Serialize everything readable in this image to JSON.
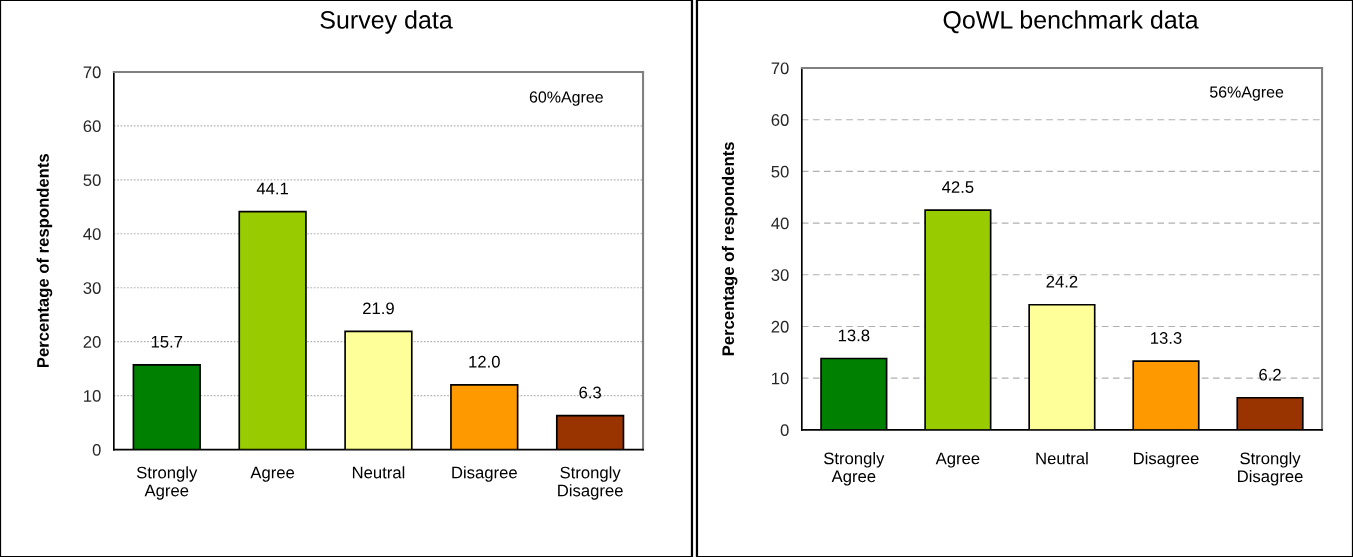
{
  "chart_data": [
    {
      "type": "bar",
      "title": "Survey data",
      "ylabel": "Percentage of respondents",
      "categories": [
        "Strongly\nAgree",
        "Agree",
        "Neutral",
        "Disagree",
        "Strongly\nDisagree"
      ],
      "values": [
        15.7,
        44.1,
        21.9,
        12.0,
        6.3
      ],
      "value_labels": [
        "15.7",
        "44.1",
        "21.9",
        "12.0",
        "6.3"
      ],
      "colors": [
        "#008000",
        "#99cc00",
        "#ffff99",
        "#ff9900",
        "#993300"
      ],
      "ylim": [
        0,
        70
      ],
      "yticks": [
        0,
        10,
        20,
        30,
        40,
        50,
        60,
        70
      ],
      "grid": "y",
      "annotations": [
        "60%Agree"
      ]
    },
    {
      "type": "bar",
      "title": "QoWL benchmark data",
      "ylabel": "Percentage of respondents",
      "categories": [
        "Strongly\nAgree",
        "Agree",
        "Neutral",
        "Disagree",
        "Strongly\nDisagree"
      ],
      "values": [
        13.8,
        42.5,
        24.2,
        13.3,
        6.2
      ],
      "value_labels": [
        "13.8",
        "42.5",
        "24.2",
        "13.3",
        "6.2"
      ],
      "colors": [
        "#008000",
        "#99cc00",
        "#ffff99",
        "#ff9900",
        "#993300"
      ],
      "ylim": [
        0,
        70
      ],
      "yticks": [
        0,
        10,
        20,
        30,
        40,
        50,
        60,
        70
      ],
      "grid": "y",
      "annotations": [
        "56%Agree"
      ]
    }
  ]
}
